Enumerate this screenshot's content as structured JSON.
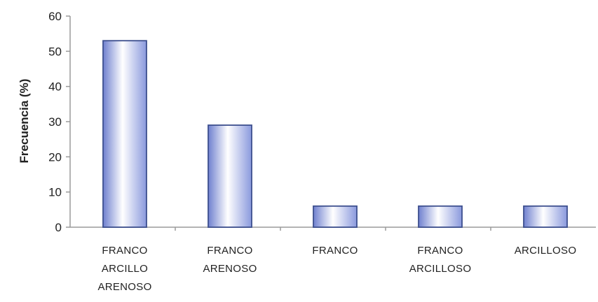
{
  "chart_data": {
    "type": "bar",
    "categories": [
      [
        "FRANCO",
        "ARCILLO",
        "ARENOSO"
      ],
      [
        "FRANCO",
        "ARENOSO"
      ],
      [
        "FRANCO"
      ],
      [
        "FRANCO",
        "ARCILLOSO"
      ],
      [
        "ARCILLOSO"
      ]
    ],
    "values": [
      53,
      29,
      6,
      6,
      6
    ],
    "ylabel": "Frecuencia (%)",
    "ylim": [
      0,
      60
    ],
    "yticks": [
      0,
      10,
      20,
      30,
      40,
      50,
      60
    ],
    "grid": false,
    "legend": "none",
    "colors": {
      "bar_edge": "#3d4f8e",
      "bar_center": "#ffffff",
      "bar_side": "#7f8fd6",
      "axis": "#9a9a9a"
    }
  }
}
